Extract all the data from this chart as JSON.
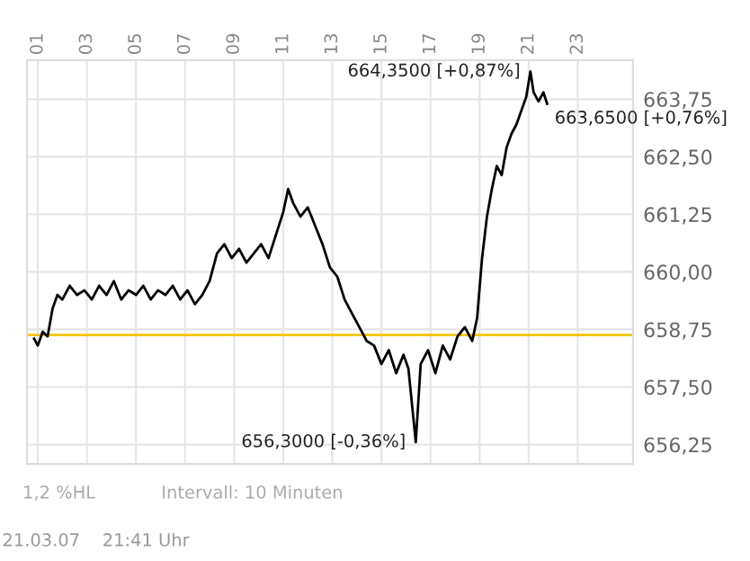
{
  "chart_data": {
    "type": "line",
    "x": [
      0.85,
      1.0,
      1.2,
      1.4,
      1.6,
      1.8,
      2.0,
      2.3,
      2.6,
      2.9,
      3.2,
      3.5,
      3.8,
      4.1,
      4.4,
      4.7,
      5.0,
      5.3,
      5.6,
      5.9,
      6.2,
      6.5,
      6.8,
      7.1,
      7.4,
      7.7,
      8.0,
      8.3,
      8.6,
      8.9,
      9.2,
      9.5,
      9.8,
      10.1,
      10.4,
      10.7,
      11.0,
      11.2,
      11.4,
      11.7,
      12.0,
      12.3,
      12.6,
      12.9,
      13.2,
      13.5,
      13.8,
      14.1,
      14.4,
      14.7,
      15.0,
      15.3,
      15.6,
      15.9,
      16.1,
      16.4,
      16.6,
      16.9,
      17.2,
      17.5,
      17.8,
      18.1,
      18.4,
      18.7,
      18.9,
      19.1,
      19.3,
      19.5,
      19.7,
      19.9,
      20.1,
      20.3,
      20.5,
      20.7,
      20.9,
      21.07,
      21.2,
      21.4,
      21.6,
      21.75
    ],
    "series": [
      {
        "color": "#000000",
        "values": [
          658.55,
          658.4,
          658.7,
          658.6,
          659.2,
          659.5,
          659.4,
          659.7,
          659.5,
          659.6,
          659.4,
          659.7,
          659.5,
          659.8,
          659.4,
          659.6,
          659.5,
          659.7,
          659.4,
          659.6,
          659.5,
          659.7,
          659.4,
          659.6,
          659.3,
          659.5,
          659.8,
          660.4,
          660.6,
          660.3,
          660.5,
          660.2,
          660.4,
          660.6,
          660.3,
          660.8,
          661.3,
          661.8,
          661.5,
          661.2,
          661.4,
          661.0,
          660.6,
          660.1,
          659.9,
          659.4,
          659.1,
          658.8,
          658.5,
          658.4,
          658.0,
          658.3,
          657.8,
          658.2,
          657.9,
          656.3,
          658.0,
          658.3,
          657.8,
          658.4,
          658.1,
          658.6,
          658.8,
          658.5,
          659.0,
          660.3,
          661.2,
          661.8,
          662.3,
          662.1,
          662.7,
          663.0,
          663.2,
          663.5,
          663.8,
          664.35,
          663.9,
          663.7,
          663.9,
          663.65
        ]
      }
    ],
    "xlim": [
      0.56,
      25.25
    ],
    "xticks": [
      {
        "value": 1,
        "label": "01"
      },
      {
        "value": 3,
        "label": "03"
      },
      {
        "value": 5,
        "label": "05"
      },
      {
        "value": 7,
        "label": "07"
      },
      {
        "value": 9,
        "label": "09"
      },
      {
        "value": 11,
        "label": "11"
      },
      {
        "value": 13,
        "label": "13"
      },
      {
        "value": 15,
        "label": "15"
      },
      {
        "value": 17,
        "label": "17"
      },
      {
        "value": 19,
        "label": "19"
      },
      {
        "value": 21,
        "label": "21"
      },
      {
        "value": 23,
        "label": "23"
      }
    ],
    "ylim": [
      655.83,
      664.6
    ],
    "yticks": [
      {
        "value": 656.25,
        "label": "656,25"
      },
      {
        "value": 657.5,
        "label": "657,50"
      },
      {
        "value": 658.75,
        "label": "658,75"
      },
      {
        "value": 660,
        "label": "660,00"
      },
      {
        "value": 661.25,
        "label": "661,25"
      },
      {
        "value": 662.5,
        "label": "662,50"
      },
      {
        "value": 663.75,
        "label": "663,75"
      }
    ],
    "ref_lines": [
      {
        "axis": "y",
        "value": 658.63,
        "color": "#f5c400"
      }
    ],
    "grid": true,
    "annotations": [
      {
        "text": "664,3500 [+0,87%]",
        "x": 21.07,
        "y": 664.35
      },
      {
        "text": "663,6500 [+0,76%]",
        "x": 21.75,
        "y": 663.65
      },
      {
        "text": "656,3000 [-0,36%]",
        "x": 16.4,
        "y": 656.3
      },
      "1,2 %HL",
      "Intervall: 10 Minuten",
      "21.03.07    21:41 Uhr"
    ]
  }
}
